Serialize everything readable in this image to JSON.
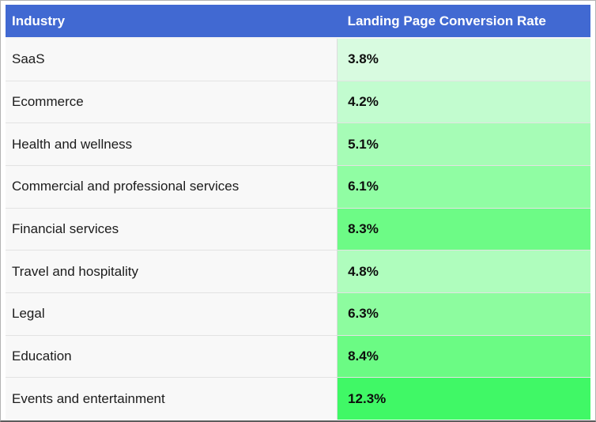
{
  "table": {
    "headers": [
      "Industry",
      "Landing Page Conversion Rate"
    ],
    "rows": [
      {
        "industry": "SaaS",
        "rate": "3.8%",
        "cell_color": "#d8fbe0"
      },
      {
        "industry": "Ecommerce",
        "rate": "4.2%",
        "cell_color": "#c2fccf"
      },
      {
        "industry": "Health and wellness",
        "rate": "5.1%",
        "cell_color": "#a6fcb6"
      },
      {
        "industry": "Commercial and professional services",
        "rate": "6.1%",
        "cell_color": "#90fda3"
      },
      {
        "industry": "Financial services",
        "rate": "8.3%",
        "cell_color": "#6dfb86"
      },
      {
        "industry": "Travel and hospitality",
        "rate": "4.8%",
        "cell_color": "#affdbd"
      },
      {
        "industry": "Legal",
        "rate": "6.3%",
        "cell_color": "#8dfc9f"
      },
      {
        "industry": "Education",
        "rate": "8.4%",
        "cell_color": "#6bfb84"
      },
      {
        "industry": "Events and entertainment",
        "rate": "12.3%",
        "cell_color": "#40f866"
      }
    ]
  },
  "colors": {
    "header_background": "#4169d2",
    "header_text": "#ffffff",
    "industry_cell_background": "#f8f8f8",
    "row_border": "#e3e3e3",
    "outer_border": "#b3b3b3"
  },
  "chart_data": {
    "type": "table",
    "columns": [
      "Industry",
      "Landing Page Conversion Rate"
    ],
    "categories": [
      "SaaS",
      "Ecommerce",
      "Health and wellness",
      "Commercial and professional services",
      "Financial services",
      "Travel and hospitality",
      "Legal",
      "Education",
      "Events and entertainment"
    ],
    "values": [
      3.8,
      4.2,
      5.1,
      6.1,
      8.3,
      4.8,
      6.3,
      8.4,
      12.3
    ],
    "value_unit": "percent",
    "formatting": "green color scale on rate column, darker green for higher values"
  }
}
